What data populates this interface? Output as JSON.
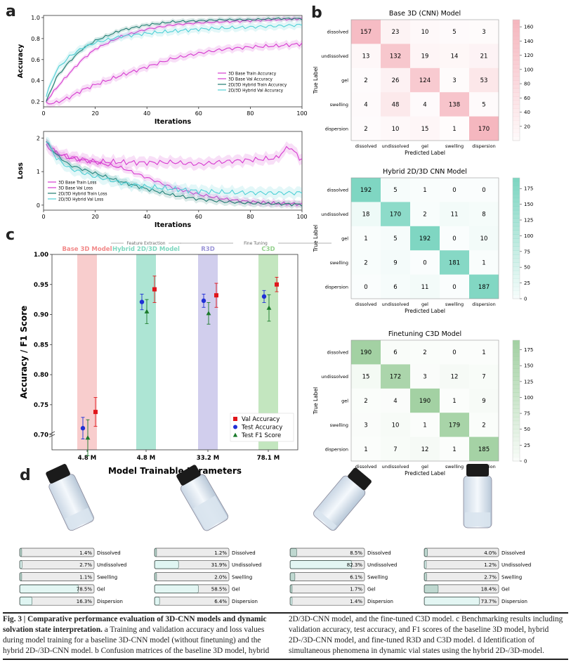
{
  "panels": {
    "a": "a",
    "b": "b",
    "c": "c",
    "d": "d"
  },
  "colors": {
    "magenta": "#d63bd0",
    "teal": "#3ec4ba",
    "cyan": "#4fd0d6",
    "darkteal": "#1f7b70",
    "cm_red": "#f5b7bf",
    "cm_green": "#7fd6c2",
    "cm_lgreen": "#a3d1a3"
  },
  "chart_data": [
    {
      "id": "accuracy",
      "type": "line",
      "xlabel": "Iterations",
      "ylabel": "Accuracy",
      "xlim": [
        0,
        100
      ],
      "ylim": [
        0.15,
        1.02
      ],
      "xticks": [
        0,
        20,
        40,
        60,
        80,
        100
      ],
      "yticks": [
        0.2,
        0.4,
        0.6,
        0.8,
        1.0
      ],
      "legend": "bottom-right",
      "series": [
        {
          "name": "3D Base Train Accuracy",
          "key": "magenta",
          "points": [
            [
              1,
              0.2
            ],
            [
              5,
              0.33
            ],
            [
              10,
              0.47
            ],
            [
              15,
              0.6
            ],
            [
              20,
              0.7
            ],
            [
              30,
              0.82
            ],
            [
              40,
              0.89
            ],
            [
              50,
              0.93
            ],
            [
              60,
              0.95
            ],
            [
              70,
              0.96
            ],
            [
              80,
              0.97
            ],
            [
              90,
              0.98
            ],
            [
              100,
              0.99
            ]
          ]
        },
        {
          "name": "3D Base Val Accuracy",
          "key": "magenta",
          "points": [
            [
              1,
              0.18
            ],
            [
              5,
              0.19
            ],
            [
              10,
              0.24
            ],
            [
              15,
              0.31
            ],
            [
              20,
              0.36
            ],
            [
              30,
              0.45
            ],
            [
              40,
              0.53
            ],
            [
              50,
              0.61
            ],
            [
              60,
              0.66
            ],
            [
              70,
              0.7
            ],
            [
              80,
              0.72
            ],
            [
              90,
              0.73
            ],
            [
              100,
              0.75
            ]
          ]
        },
        {
          "name": "2D/3D Hybrid Train Accuracy",
          "key": "darkteal",
          "points": [
            [
              1,
              0.2
            ],
            [
              5,
              0.43
            ],
            [
              10,
              0.58
            ],
            [
              15,
              0.7
            ],
            [
              20,
              0.78
            ],
            [
              30,
              0.88
            ],
            [
              40,
              0.93
            ],
            [
              50,
              0.96
            ],
            [
              60,
              0.97
            ],
            [
              70,
              0.98
            ],
            [
              80,
              0.98
            ],
            [
              90,
              0.99
            ],
            [
              100,
              0.99
            ]
          ]
        },
        {
          "name": "2D/3D Hybrid Val Accuracy",
          "key": "cyan",
          "points": [
            [
              1,
              0.26
            ],
            [
              5,
              0.5
            ],
            [
              10,
              0.63
            ],
            [
              15,
              0.71
            ],
            [
              20,
              0.76
            ],
            [
              30,
              0.82
            ],
            [
              40,
              0.85
            ],
            [
              50,
              0.87
            ],
            [
              60,
              0.89
            ],
            [
              70,
              0.9
            ],
            [
              80,
              0.91
            ],
            [
              90,
              0.92
            ],
            [
              100,
              0.93
            ]
          ]
        }
      ]
    },
    {
      "id": "loss",
      "type": "line",
      "xlabel": "Iterations",
      "ylabel": "Loss",
      "xlim": [
        0,
        100
      ],
      "ylim": [
        -0.15,
        2.2
      ],
      "xticks": [
        0,
        20,
        40,
        60,
        80,
        100
      ],
      "yticks": [
        0,
        1,
        2
      ],
      "legend": "bottom-left",
      "series": [
        {
          "name": "3D Base Train Loss",
          "key": "magenta",
          "points": [
            [
              1,
              1.9
            ],
            [
              5,
              1.55
            ],
            [
              10,
              1.4
            ],
            [
              20,
              1.28
            ],
            [
              30,
              1.12
            ],
            [
              40,
              0.82
            ],
            [
              50,
              0.52
            ],
            [
              60,
              0.32
            ],
            [
              70,
              0.18
            ],
            [
              80,
              0.1
            ],
            [
              90,
              0.05
            ],
            [
              100,
              0.03
            ]
          ]
        },
        {
          "name": "3D Base Val Loss",
          "key": "magenta",
          "points": [
            [
              1,
              1.75
            ],
            [
              5,
              1.55
            ],
            [
              10,
              1.45
            ],
            [
              20,
              1.3
            ],
            [
              30,
              1.28
            ],
            [
              40,
              1.27
            ],
            [
              50,
              1.28
            ],
            [
              60,
              1.22
            ],
            [
              70,
              1.3
            ],
            [
              80,
              1.35
            ],
            [
              90,
              1.4
            ],
            [
              95,
              1.75
            ],
            [
              100,
              1.35
            ]
          ]
        },
        {
          "name": "2D/3D Hybrid Train Loss",
          "key": "darkteal",
          "points": [
            [
              1,
              1.9
            ],
            [
              5,
              1.5
            ],
            [
              10,
              1.2
            ],
            [
              20,
              0.95
            ],
            [
              30,
              0.7
            ],
            [
              40,
              0.48
            ],
            [
              50,
              0.3
            ],
            [
              60,
              0.18
            ],
            [
              70,
              0.1
            ],
            [
              80,
              0.06
            ],
            [
              90,
              0.04
            ],
            [
              100,
              0.02
            ]
          ]
        },
        {
          "name": "2D/3D Hybrid Val Loss",
          "key": "cyan",
          "points": [
            [
              1,
              1.95
            ],
            [
              5,
              1.4
            ],
            [
              10,
              1.1
            ],
            [
              20,
              0.85
            ],
            [
              30,
              0.67
            ],
            [
              40,
              0.55
            ],
            [
              50,
              0.48
            ],
            [
              60,
              0.42
            ],
            [
              70,
              0.38
            ],
            [
              80,
              0.37
            ],
            [
              90,
              0.36
            ],
            [
              100,
              0.37
            ]
          ]
        }
      ]
    },
    {
      "id": "benchmark",
      "type": "scatter",
      "xlabel": "Model Trainable Parameters",
      "ylabel": "Accuracy / F1 Score",
      "ylim": [
        0.675,
        1.0
      ],
      "yticks": [
        0.7,
        0.75,
        0.8,
        0.85,
        0.9,
        0.95,
        1.0
      ],
      "categories": [
        "4.8 M",
        "4.8 M",
        "33.2 M",
        "78.1 M"
      ],
      "model_labels": [
        "Base 3D Model",
        "Hybrid 2D/3D Model",
        "R3D",
        "C3D"
      ],
      "band_colors": [
        "#f7c4c4",
        "#9fe0cd",
        "#c9c6ea",
        "#b9e2b4"
      ],
      "label_colors": [
        "#f28a8a",
        "#7fd8c0",
        "#9b95d8",
        "#95d28e"
      ],
      "group_labels": [
        "Feature Extraction",
        "Fine Tuning"
      ],
      "legend": "bottom-right",
      "series": [
        {
          "name": "Val Accuracy",
          "color": "#e0161b",
          "marker": "square",
          "values": [
            0.738,
            0.942,
            0.932,
            0.95
          ],
          "err": [
            0.024,
            0.022,
            0.02,
            0.012
          ]
        },
        {
          "name": "Test Accuracy",
          "color": "#1f2fd6",
          "marker": "circle",
          "values": [
            0.711,
            0.921,
            0.923,
            0.93
          ],
          "err": [
            0.018,
            0.013,
            0.011,
            0.01
          ]
        },
        {
          "name": "Test F1 Score",
          "color": "#1a7a2a",
          "marker": "triangle",
          "values": [
            0.695,
            0.905,
            0.902,
            0.911
          ],
          "err": [
            0.03,
            0.02,
            0.018,
            0.022
          ]
        }
      ]
    },
    {
      "id": "cm_base",
      "type": "heatmap",
      "title": "Base 3D (CNN) Model",
      "xlabel": "Predicted Label",
      "ylabel": "True Label",
      "labels": [
        "dissolved",
        "undissolved",
        "gel",
        "swelling",
        "dispersion"
      ],
      "vmax": 170,
      "cbar_ticks": [
        20,
        40,
        60,
        80,
        100,
        120,
        140,
        160
      ],
      "matrix": [
        [
          157,
          23,
          10,
          5,
          3
        ],
        [
          13,
          132,
          19,
          14,
          21
        ],
        [
          2,
          26,
          124,
          3,
          53
        ],
        [
          4,
          48,
          4,
          138,
          5
        ],
        [
          2,
          10,
          15,
          1,
          170
        ]
      ]
    },
    {
      "id": "cm_hybrid",
      "type": "heatmap",
      "title": "Hybrid 2D/3D CNN Model",
      "xlabel": "Predicted Label",
      "ylabel": "True Label",
      "labels": [
        "dissolved",
        "undissolved",
        "gel",
        "swelling",
        "dispersion"
      ],
      "vmax": 192,
      "cbar_ticks": [
        0,
        25,
        50,
        75,
        100,
        125,
        150,
        175
      ],
      "matrix": [
        [
          192,
          5,
          1,
          0,
          0
        ],
        [
          18,
          170,
          2,
          11,
          8
        ],
        [
          1,
          5,
          192,
          0,
          10
        ],
        [
          2,
          9,
          0,
          181,
          1
        ],
        [
          0,
          6,
          11,
          0,
          187
        ]
      ]
    },
    {
      "id": "cm_c3d",
      "type": "heatmap",
      "title": "Finetuning C3D Model",
      "xlabel": "Predicted Label",
      "ylabel": "True Label",
      "labels": [
        "dissolved",
        "undissolved",
        "gel",
        "swelling",
        "dispersion"
      ],
      "vmax": 190,
      "cbar_ticks": [
        0,
        25,
        50,
        75,
        100,
        125,
        150,
        175
      ],
      "matrix": [
        [
          190,
          6,
          2,
          0,
          1
        ],
        [
          15,
          172,
          3,
          12,
          7
        ],
        [
          2,
          4,
          190,
          1,
          9
        ],
        [
          3,
          10,
          1,
          179,
          2
        ],
        [
          1,
          7,
          12,
          1,
          185
        ]
      ]
    }
  ],
  "vials": {
    "labels": [
      "Dissolved",
      "Undissolved",
      "Swelling",
      "Gel",
      "Dispersion"
    ],
    "states": [
      {
        "values": [
          1.4,
          2.7,
          1.1,
          78.5,
          16.3
        ],
        "texts": [
          "1.4%",
          "2.7%",
          "1.1%",
          "78.5%",
          "16.3%"
        ]
      },
      {
        "values": [
          1.2,
          31.9,
          2.0,
          58.5,
          6.4
        ],
        "texts": [
          "1.2%",
          "31.9%",
          "2.0%",
          "58.5%",
          "6.4%"
        ]
      },
      {
        "values": [
          8.5,
          82.3,
          6.1,
          1.7,
          1.4
        ],
        "texts": [
          "8.5%",
          "82.3%",
          "6.1%",
          "1.7%",
          "1.4%"
        ]
      },
      {
        "values": [
          4.0,
          1.2,
          2.7,
          18.4,
          73.7
        ],
        "texts": [
          "4.0%",
          "1.2%",
          "2.7%",
          "18.4%",
          "73.7%"
        ]
      }
    ]
  },
  "caption": {
    "bold": "Fig. 3 | Comparative performance evaluation of 3D-CNN models and dynamic solvation state interpretation.",
    "left_rest": " a Training and validation accuracy and loss values during model training for a baseline 3D-CNN model (without finetuning) and the hybrid 2D-/3D-CNN model. b Confusion matrices of the baseline 3D model, hybrid",
    "right": "2D/3D-CNN model, and the fine-tuned C3D model. c Benchmarking results including validation accuracy, test accuracy, and F1 scores of the baseline 3D model, hybrid 2D-/3D-CNN model, and fine-tuned R3D and C3D model. d Identification of simultaneous phenomena in dynamic vial states using the hybrid 2D-/3D-model."
  }
}
